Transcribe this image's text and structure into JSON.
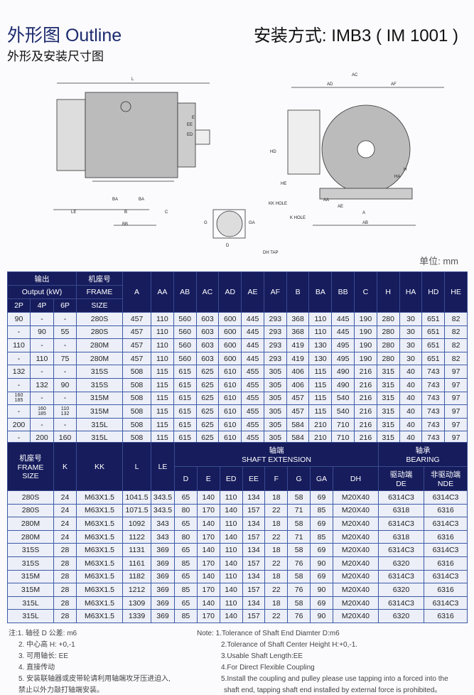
{
  "header": {
    "title": "外形图 Outline",
    "subtitle": "外形及安装尺寸图",
    "mounting": "安装方式: IMB3 ( IM 1001 )",
    "unit": "单位: mm"
  },
  "drawing": {
    "side_labels": [
      "L",
      "C",
      "E",
      "EE",
      "ED",
      "BA",
      "BA",
      "LE",
      "B",
      "C",
      "BB",
      "HE"
    ],
    "shaft_labels": [
      "G",
      "D",
      "GA",
      "DH TAP"
    ],
    "end_labels": [
      "AC",
      "AD",
      "AF",
      "HD",
      "HE",
      "H",
      "HA",
      "KK HOLE",
      "K HOLE",
      "AA",
      "AE",
      "A",
      "AB"
    ]
  },
  "table1": {
    "header": {
      "output_cn": "输出",
      "output_en": "Output (kW)",
      "poles": [
        "2P",
        "4P",
        "6P"
      ],
      "frame_cn": "机座号",
      "frame_en": "FRAME",
      "size": "SIZE",
      "cols": [
        "A",
        "AA",
        "AB",
        "AC",
        "AD",
        "AE",
        "AF",
        "B",
        "BA",
        "BB",
        "C",
        "H",
        "HA",
        "HD",
        "HE"
      ]
    },
    "rows": [
      [
        "90",
        "-",
        "-",
        "280S",
        "457",
        "110",
        "560",
        "603",
        "600",
        "445",
        "293",
        "368",
        "110",
        "445",
        "190",
        "280",
        "30",
        "651",
        "82"
      ],
      [
        "-",
        "90",
        "55",
        "280S",
        "457",
        "110",
        "560",
        "603",
        "600",
        "445",
        "293",
        "368",
        "110",
        "445",
        "190",
        "280",
        "30",
        "651",
        "82"
      ],
      [
        "110",
        "-",
        "-",
        "280M",
        "457",
        "110",
        "560",
        "603",
        "600",
        "445",
        "293",
        "419",
        "130",
        "495",
        "190",
        "280",
        "30",
        "651",
        "82"
      ],
      [
        "-",
        "110",
        "75",
        "280M",
        "457",
        "110",
        "560",
        "603",
        "600",
        "445",
        "293",
        "419",
        "130",
        "495",
        "190",
        "280",
        "30",
        "651",
        "82"
      ],
      [
        "132",
        "-",
        "-",
        "315S",
        "508",
        "115",
        "615",
        "625",
        "610",
        "455",
        "305",
        "406",
        "115",
        "490",
        "216",
        "315",
        "40",
        "743",
        "97"
      ],
      [
        "-",
        "132",
        "90",
        "315S",
        "508",
        "115",
        "615",
        "625",
        "610",
        "455",
        "305",
        "406",
        "115",
        "490",
        "216",
        "315",
        "40",
        "743",
        "97"
      ],
      [
        "160 185",
        "-",
        "-",
        "315M",
        "508",
        "115",
        "615",
        "625",
        "610",
        "455",
        "305",
        "457",
        "115",
        "540",
        "216",
        "315",
        "40",
        "743",
        "97"
      ],
      [
        "-",
        "160 185",
        "110 132",
        "315M",
        "508",
        "115",
        "615",
        "625",
        "610",
        "455",
        "305",
        "457",
        "115",
        "540",
        "216",
        "315",
        "40",
        "743",
        "97"
      ],
      [
        "200",
        "-",
        "-",
        "315L",
        "508",
        "115",
        "615",
        "625",
        "610",
        "455",
        "305",
        "584",
        "210",
        "710",
        "216",
        "315",
        "40",
        "743",
        "97"
      ],
      [
        "-",
        "200",
        "160",
        "315L",
        "508",
        "115",
        "615",
        "625",
        "610",
        "455",
        "305",
        "584",
        "210",
        "710",
        "216",
        "315",
        "40",
        "743",
        "97"
      ]
    ]
  },
  "table2": {
    "header": {
      "frame_cn": "机座号",
      "frame_en": "FRAME",
      "size": "SIZE",
      "k": "K",
      "kk": "KK",
      "l": "L",
      "le": "LE",
      "shaft_cn": "轴端",
      "shaft_en": "SHAFT EXTENSION",
      "shaft_cols": [
        "D",
        "E",
        "ED",
        "EE",
        "F",
        "G",
        "GA",
        "DH"
      ],
      "bearing_cn": "轴承",
      "bearing_en": "BEARING",
      "de_cn": "驱动端",
      "de": "DE",
      "nde_cn": "非驱动端",
      "nde": "NDE"
    },
    "rows": [
      [
        "280S",
        "24",
        "M63X1.5",
        "1041.5",
        "343.5",
        "65",
        "140",
        "110",
        "134",
        "18",
        "58",
        "69",
        "M20X40",
        "6314C3",
        "6314C3"
      ],
      [
        "280S",
        "24",
        "M63X1.5",
        "1071.5",
        "343.5",
        "80",
        "170",
        "140",
        "157",
        "22",
        "71",
        "85",
        "M20X40",
        "6318",
        "6316"
      ],
      [
        "280M",
        "24",
        "M63X1.5",
        "1092",
        "343",
        "65",
        "140",
        "110",
        "134",
        "18",
        "58",
        "69",
        "M20X40",
        "6314C3",
        "6314C3"
      ],
      [
        "280M",
        "24",
        "M63X1.5",
        "1122",
        "343",
        "80",
        "170",
        "140",
        "157",
        "22",
        "71",
        "85",
        "M20X40",
        "6318",
        "6316"
      ],
      [
        "315S",
        "28",
        "M63X1.5",
        "1131",
        "369",
        "65",
        "140",
        "110",
        "134",
        "18",
        "58",
        "69",
        "M20X40",
        "6314C3",
        "6314C3"
      ],
      [
        "315S",
        "28",
        "M63X1.5",
        "1161",
        "369",
        "85",
        "170",
        "140",
        "157",
        "22",
        "76",
        "90",
        "M20X40",
        "6320",
        "6316"
      ],
      [
        "315M",
        "28",
        "M63X1.5",
        "1182",
        "369",
        "65",
        "140",
        "110",
        "134",
        "18",
        "58",
        "69",
        "M20X40",
        "6314C3",
        "6314C3"
      ],
      [
        "315M",
        "28",
        "M63X1.5",
        "1212",
        "369",
        "85",
        "170",
        "140",
        "157",
        "22",
        "76",
        "90",
        "M20X40",
        "6320",
        "6316"
      ],
      [
        "315L",
        "28",
        "M63X1.5",
        "1309",
        "369",
        "65",
        "140",
        "110",
        "134",
        "18",
        "58",
        "69",
        "M20X40",
        "6314C3",
        "6314C3"
      ],
      [
        "315L",
        "28",
        "M63X1.5",
        "1339",
        "369",
        "85",
        "170",
        "140",
        "157",
        "22",
        "76",
        "90",
        "M20X40",
        "6320",
        "6316"
      ]
    ]
  },
  "notes_cn": [
    "注:1. 轴径 D 公差: m6",
    "2. 中心高 H: +0,-1",
    "3. 可用轴长: EE",
    "4. 直接传动",
    "5. 安装联轴器或皮带轮请利用轴端攻牙压进迫入,",
    "禁止以外力敲打轴端安装。"
  ],
  "notes_en": [
    "Note: 1.Tolerance of Shaft End Diamter D:m6",
    "2.Tolerance of Shaft Center Height H:+0,-1.",
    "3.Usable Shaft Length:EE",
    "4.For Direct Flexible Coupling",
    "5.Install the coupling and pulley please use tapping into a forced into the",
    "shaft end, tapping shaft end installed by external force is prohibited。"
  ]
}
